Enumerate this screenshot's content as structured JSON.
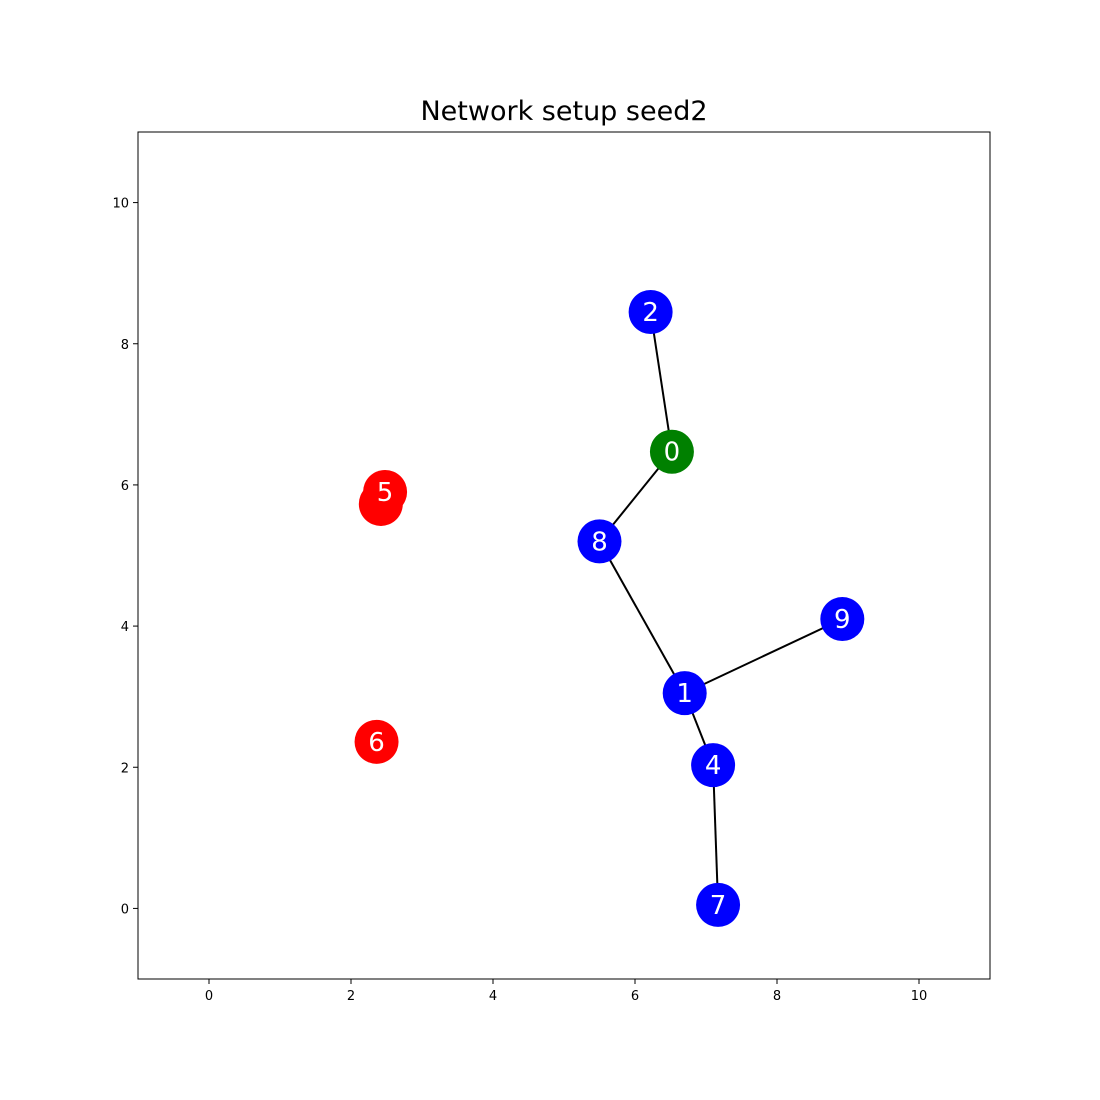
{
  "chart_data": {
    "type": "network",
    "title": "Network setup seed2",
    "xlim": [
      -1,
      11
    ],
    "ylim": [
      -1,
      11
    ],
    "xticks": [
      0,
      2,
      4,
      6,
      8,
      10
    ],
    "yticks": [
      0,
      2,
      4,
      6,
      8,
      10
    ],
    "grid": false,
    "colors": {
      "source": "#008000",
      "connected": "#0000ff",
      "disconnected": "#ff0000",
      "edge": "#000000"
    },
    "nodes": [
      {
        "id": "3",
        "x": 2.42,
        "y": 5.73,
        "status": "disconnected",
        "label_visible": false
      },
      {
        "id": "0",
        "x": 6.52,
        "y": 6.47,
        "status": "source",
        "label_visible": true
      },
      {
        "id": "1",
        "x": 6.7,
        "y": 3.05,
        "status": "connected",
        "label_visible": true
      },
      {
        "id": "2",
        "x": 6.22,
        "y": 8.45,
        "status": "connected",
        "label_visible": true
      },
      {
        "id": "4",
        "x": 7.1,
        "y": 2.03,
        "status": "connected",
        "label_visible": true
      },
      {
        "id": "5",
        "x": 2.48,
        "y": 5.9,
        "status": "disconnected",
        "label_visible": true
      },
      {
        "id": "6",
        "x": 2.36,
        "y": 2.36,
        "status": "disconnected",
        "label_visible": true
      },
      {
        "id": "7",
        "x": 7.17,
        "y": 0.05,
        "status": "connected",
        "label_visible": true
      },
      {
        "id": "8",
        "x": 5.5,
        "y": 5.2,
        "status": "connected",
        "label_visible": true
      },
      {
        "id": "9",
        "x": 8.92,
        "y": 4.1,
        "status": "connected",
        "label_visible": true
      }
    ],
    "edges": [
      [
        "0",
        "2"
      ],
      [
        "0",
        "8"
      ],
      [
        "8",
        "1"
      ],
      [
        "1",
        "9"
      ],
      [
        "1",
        "4"
      ],
      [
        "4",
        "7"
      ]
    ]
  }
}
